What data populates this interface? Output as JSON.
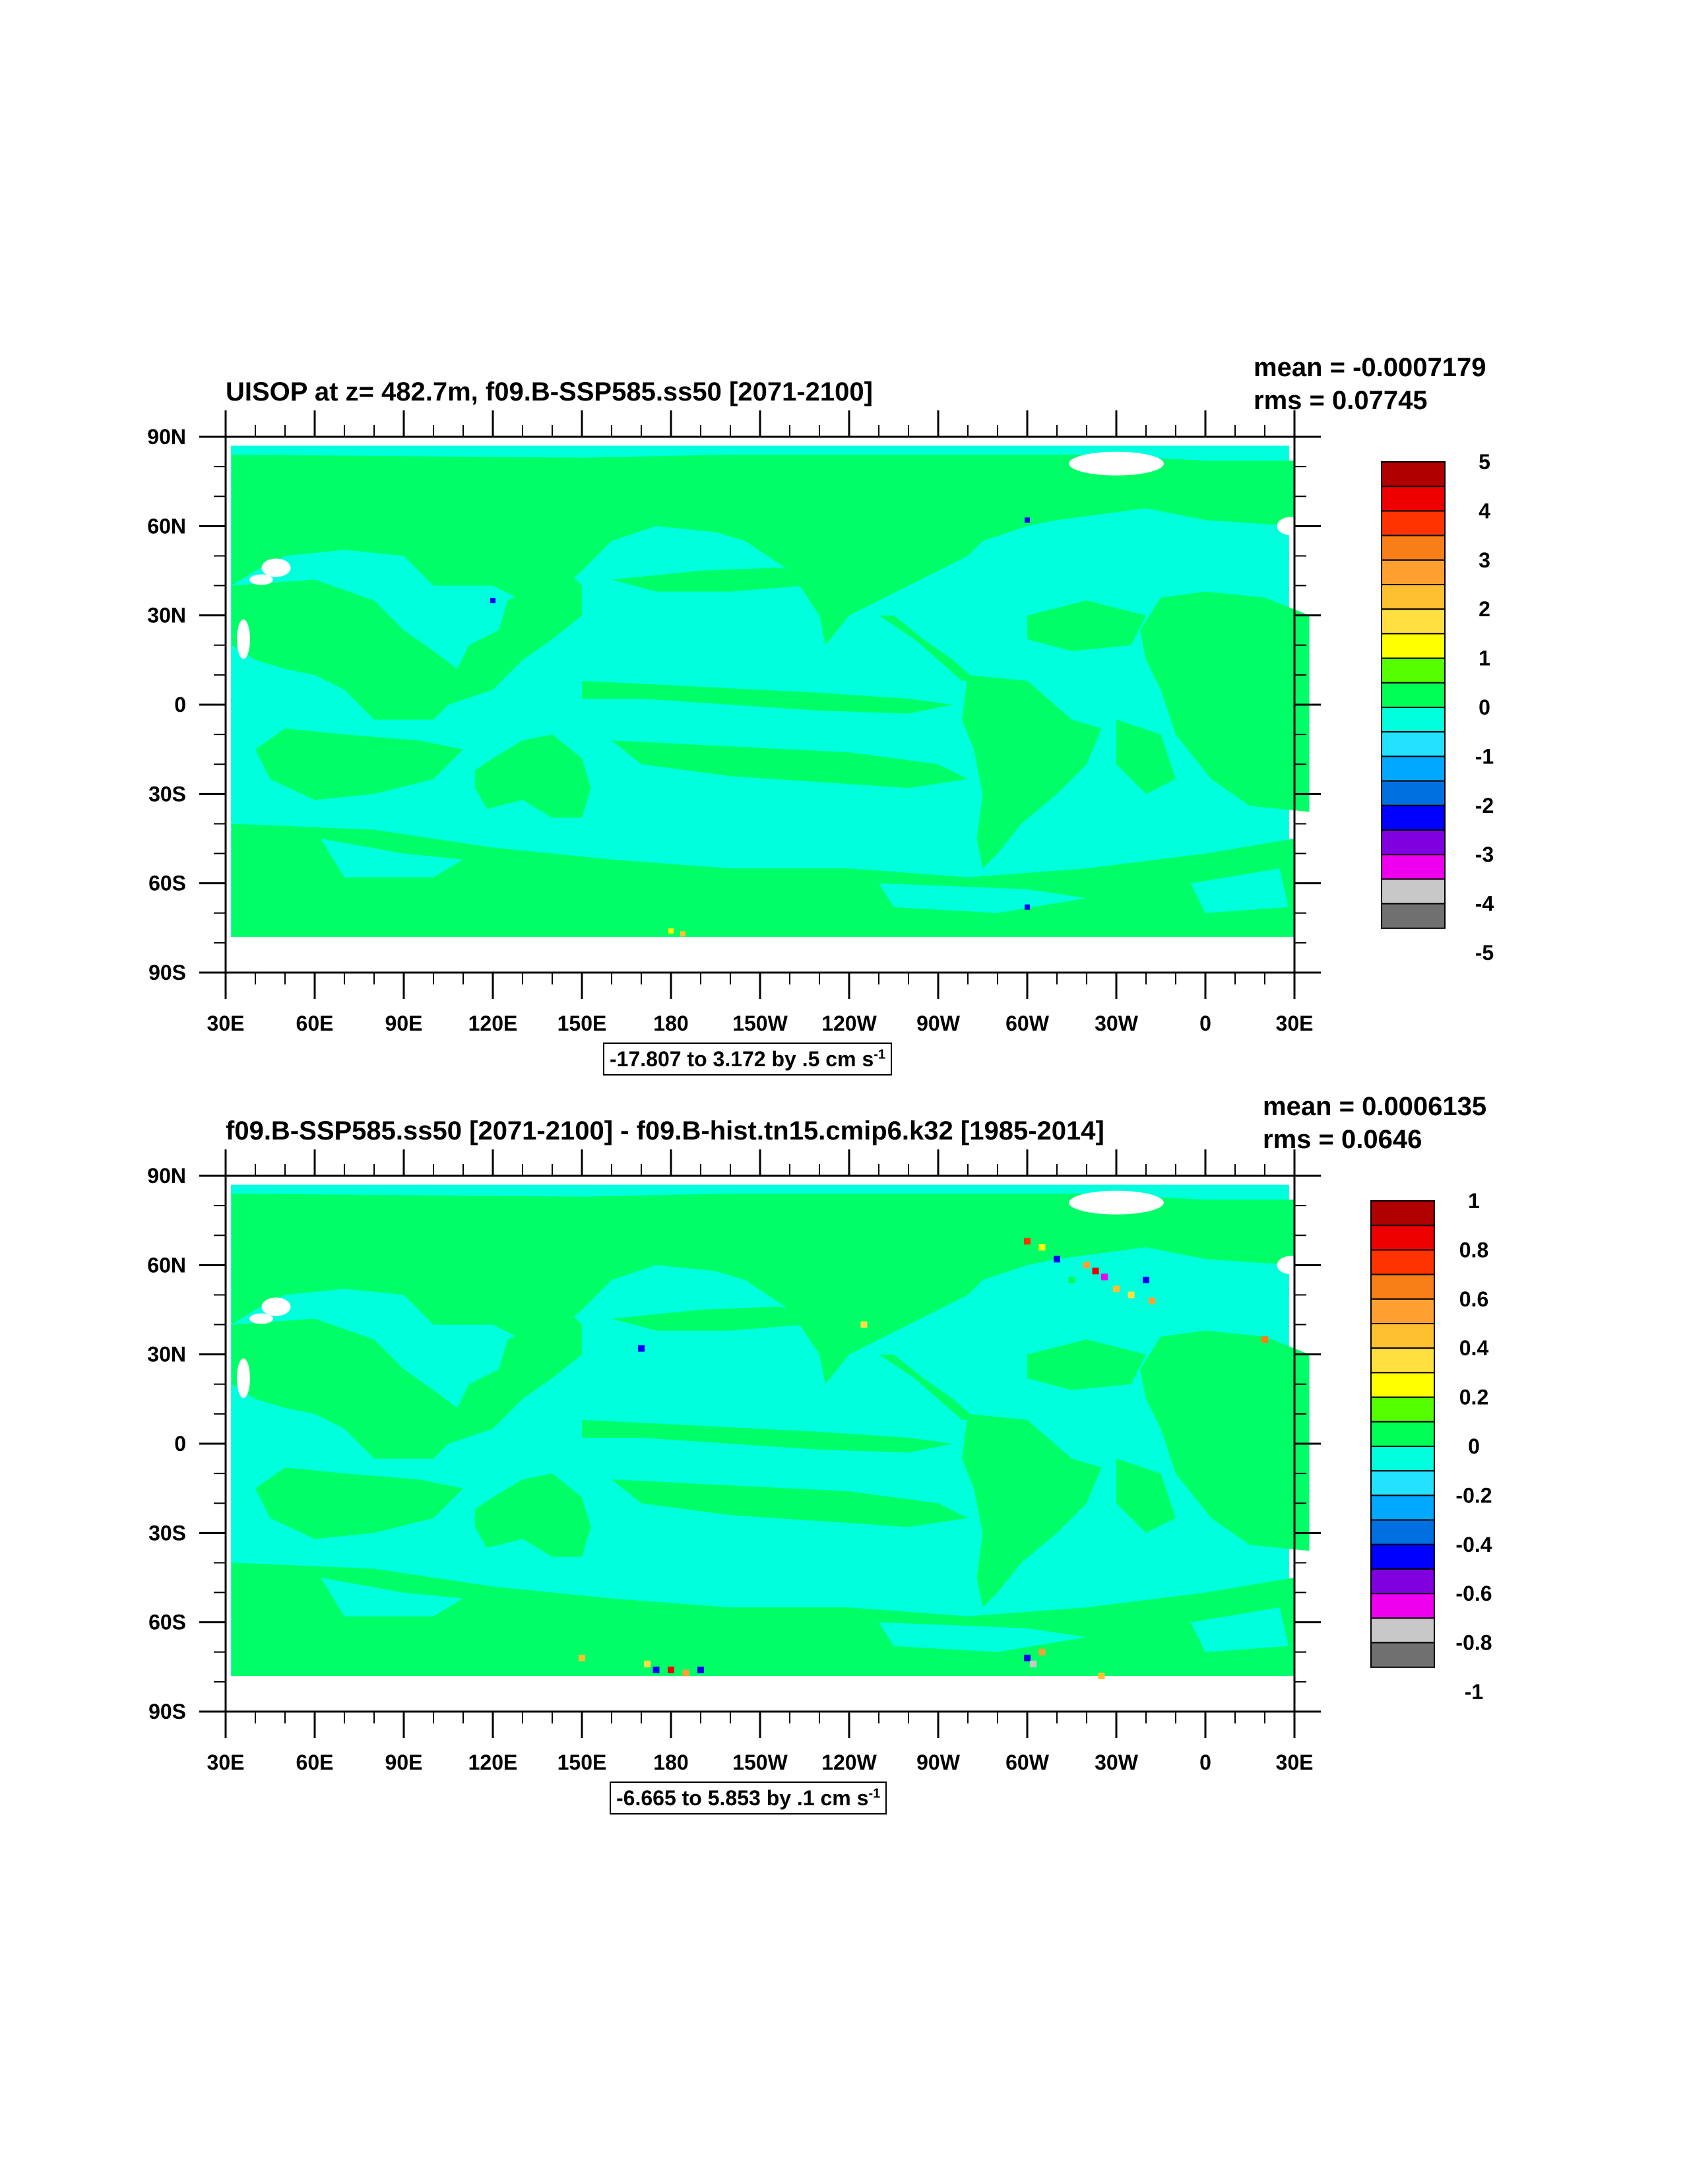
{
  "panels": [
    {
      "title": "UISOP at z= 482.7m, f09.B-SSP585.ss50 [2071-2100]",
      "mean": "mean = -0.0007179",
      "rms": "rms = 0.07745",
      "range_label": "-17.807 to 3.172 by .5 cm s",
      "range_unit_exp": "-1",
      "colorbar_labels": [
        "5",
        "4",
        "3",
        "2",
        "1",
        "0",
        "-1",
        "-2",
        "-3",
        "-4",
        "-5"
      ]
    },
    {
      "title": "f09.B-SSP585.ss50 [2071-2100] - f09.B-hist.tn15.cmip6.k32 [1985-2014]",
      "mean": "mean = 0.0006135",
      "rms": "rms = 0.0646",
      "range_label": "-6.665 to 5.853 by .1 cm s",
      "range_unit_exp": "-1",
      "colorbar_labels": [
        "1",
        "0.8",
        "0.6",
        "0.4",
        "0.2",
        "0",
        "-0.2",
        "-0.4",
        "-0.6",
        "-0.8",
        "-1"
      ]
    }
  ],
  "axes": {
    "lat_labels": [
      "90N",
      "60N",
      "30N",
      "0",
      "30S",
      "60S",
      "90S"
    ],
    "lon_labels": [
      "30E",
      "60E",
      "90E",
      "120E",
      "150E",
      "180",
      "150W",
      "120W",
      "90W",
      "60W",
      "30W",
      "0",
      "30E"
    ]
  },
  "colors": {
    "ocean_cyan": "#00ffdd",
    "land_green": "#00ff66",
    "missing_white": "#ffffff",
    "colorbar": [
      "#b00000",
      "#ee0000",
      "#ff3300",
      "#f87f17",
      "#ffa030",
      "#ffc030",
      "#ffe040",
      "#ffff00",
      "#55ff00",
      "#00ff55",
      "#00ffdd",
      "#22e2ff",
      "#00a8ff",
      "#0070e0",
      "#0000ff",
      "#8000e0",
      "#ee00ee",
      "#c8c8c8",
      "#707070"
    ]
  }
}
